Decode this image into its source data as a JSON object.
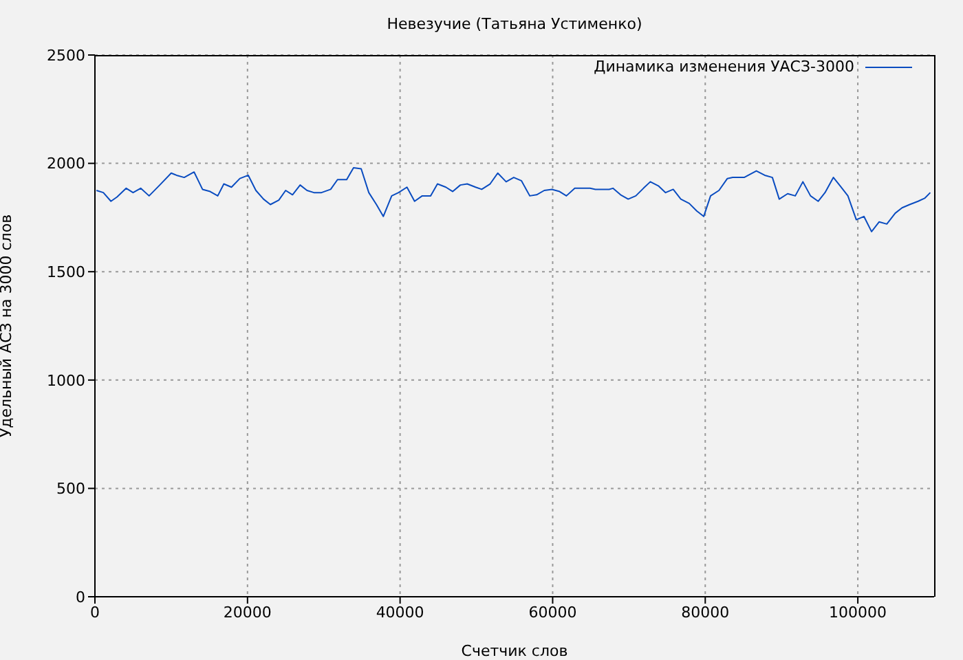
{
  "chart_data": {
    "type": "line",
    "title": "Невезучие (Татьяна Устименко)",
    "xlabel": "Счетчик слов",
    "ylabel": "Удельный АСЗ на 3000 слов",
    "x": [
      200,
      1100,
      2100,
      2900,
      4100,
      5000,
      6000,
      7100,
      8500,
      10000,
      10700,
      11700,
      13000,
      14100,
      15100,
      16100,
      16900,
      17900,
      19000,
      20100,
      21100,
      22100,
      23000,
      24100,
      25000,
      25900,
      26900,
      27800,
      28700,
      29700,
      30900,
      31800,
      33000,
      33900,
      34900,
      35900,
      36900,
      37800,
      38900,
      39800,
      40900,
      41900,
      42900,
      44000,
      44900,
      46000,
      46900,
      47900,
      48800,
      49900,
      50700,
      51800,
      52800,
      53900,
      54900,
      55900,
      57000,
      57900,
      58900,
      59900,
      60900,
      61800,
      62900,
      63900,
      64900,
      65600,
      66500,
      67400,
      67900,
      68900,
      69900,
      70900,
      71900,
      72800,
      73900,
      74800,
      75800,
      76800,
      77900,
      78900,
      79800,
      80700,
      81800,
      82900,
      83600,
      84300,
      85100,
      86700,
      87800,
      88800,
      89700,
      90800,
      91800,
      92800,
      93800,
      94800,
      95700,
      96800,
      97700,
      98700,
      99800,
      100800,
      101800,
      102800,
      103800,
      104900,
      105800,
      106800,
      107900,
      108800,
      109500
    ],
    "series": [
      {
        "name": "Динамика изменения УАСЗ-3000",
        "color": "#0a4cc0",
        "values": [
          1875,
          1865,
          1825,
          1845,
          1885,
          1865,
          1885,
          1850,
          1900,
          1955,
          1945,
          1935,
          1960,
          1880,
          1870,
          1850,
          1905,
          1890,
          1930,
          1945,
          1875,
          1835,
          1810,
          1830,
          1875,
          1855,
          1900,
          1875,
          1865,
          1865,
          1880,
          1925,
          1925,
          1980,
          1975,
          1865,
          1810,
          1755,
          1850,
          1865,
          1890,
          1825,
          1850,
          1850,
          1905,
          1890,
          1870,
          1900,
          1905,
          1890,
          1880,
          1905,
          1955,
          1915,
          1935,
          1920,
          1850,
          1855,
          1875,
          1880,
          1870,
          1850,
          1885,
          1885,
          1885,
          1880,
          1880,
          1880,
          1885,
          1855,
          1835,
          1850,
          1885,
          1915,
          1895,
          1865,
          1880,
          1835,
          1815,
          1780,
          1755,
          1850,
          1875,
          1930,
          1935,
          1935,
          1935,
          1965,
          1945,
          1935,
          1835,
          1860,
          1850,
          1915,
          1850,
          1825,
          1865,
          1935,
          1895,
          1850,
          1740,
          1755,
          1685,
          1730,
          1720,
          1770,
          1795,
          1810,
          1825,
          1840,
          1865
        ]
      }
    ],
    "xlim": [
      0,
      110000
    ],
    "ylim": [
      0,
      2500
    ],
    "xticks": [
      0,
      20000,
      40000,
      60000,
      80000,
      100000
    ],
    "yticks": [
      0,
      500,
      1000,
      1500,
      2000,
      2500
    ],
    "grid": true,
    "legend": "top right",
    "marker": "none"
  }
}
